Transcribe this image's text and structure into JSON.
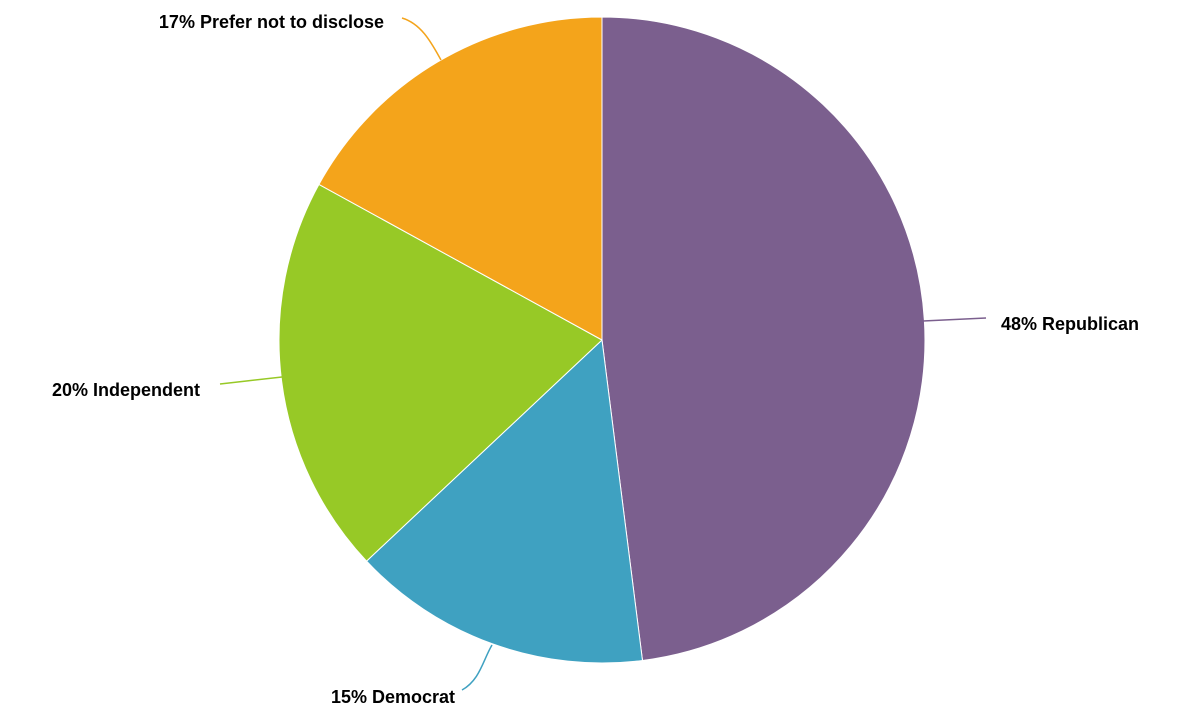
{
  "chart_data": {
    "type": "pie",
    "slices": [
      {
        "label": "Republican",
        "value": 48,
        "display": "48% Republican",
        "color": "#7b5f8e"
      },
      {
        "label": "Democrat",
        "value": 15,
        "display": "15% Democrat",
        "color": "#3fa1c1"
      },
      {
        "label": "Independent",
        "value": 20,
        "display": "20% Independent",
        "color": "#97c926"
      },
      {
        "label": "Prefer not to disclose",
        "value": 17,
        "display": "17% Prefer not to disclose",
        "color": "#f4a41b"
      }
    ],
    "start_angle": "12 o'clock",
    "direction": "clockwise",
    "legend": "none",
    "labels": "outside with leader lines"
  }
}
